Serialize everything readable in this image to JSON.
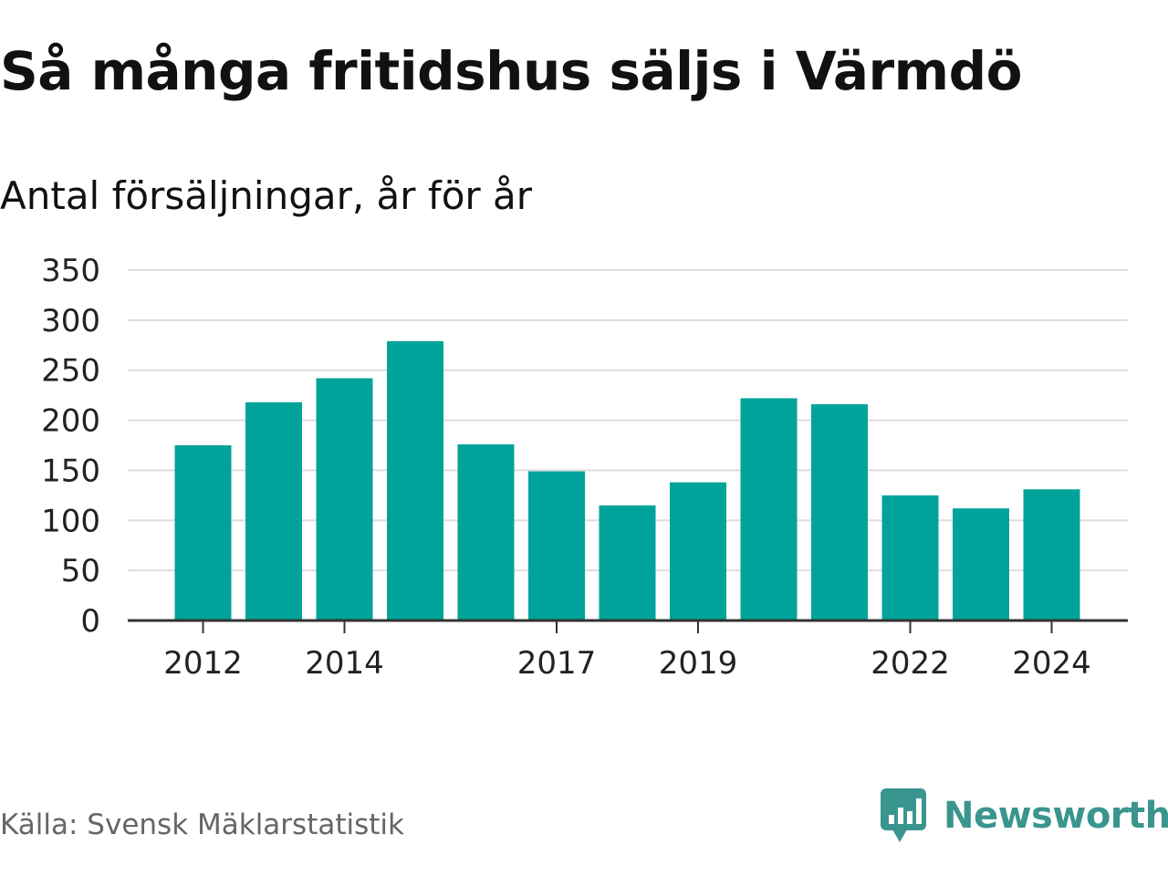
{
  "title": "Så många fritidshus säljs i Värmdö",
  "subtitle": "Antal försäljningar, år för år",
  "source": "Källa: Svensk Mäklarstatistik",
  "brand": {
    "name": "Newsworthy",
    "color": "#3a958f",
    "icon": "newsworthy-logo-icon"
  },
  "colors": {
    "bar": "#00a39a",
    "grid": "#dddddd",
    "axis": "#333333"
  },
  "chart_data": {
    "type": "bar",
    "title": "Så många fritidshus säljs i Värmdö",
    "subtitle": "Antal försäljningar, år för år",
    "categories": [
      "2012",
      "2013",
      "2014",
      "2015",
      "2016",
      "2017",
      "2018",
      "2019",
      "2020",
      "2021",
      "2022",
      "2023",
      "2024"
    ],
    "values": [
      175,
      218,
      242,
      279,
      176,
      149,
      115,
      138,
      222,
      216,
      125,
      112,
      131
    ],
    "x_tick_labels": [
      "2012",
      "2014",
      "2017",
      "2019",
      "2022",
      "2024"
    ],
    "y_ticks": [
      0,
      50,
      100,
      150,
      200,
      250,
      300,
      350
    ],
    "ylim": [
      0,
      350
    ],
    "grid": true,
    "legend": "none"
  }
}
